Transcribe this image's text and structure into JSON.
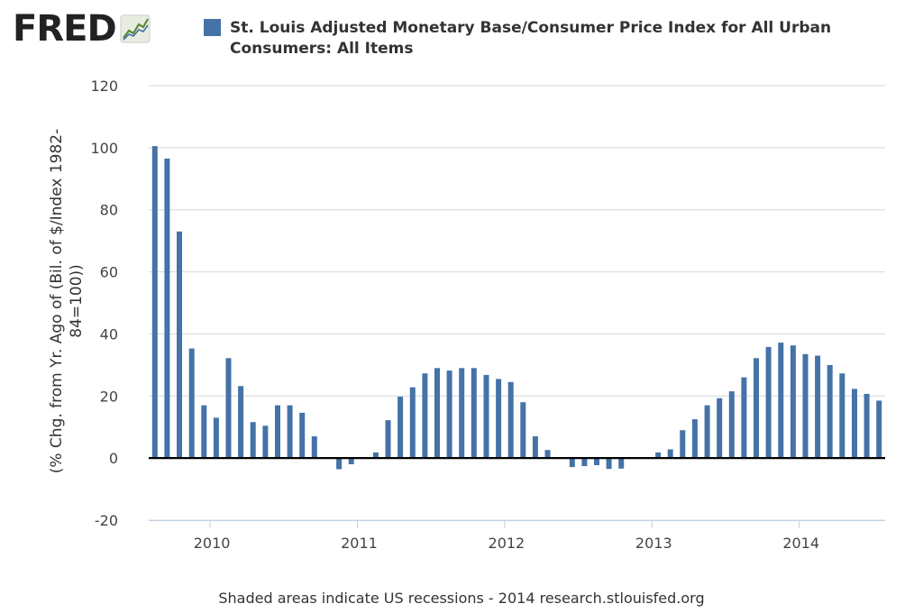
{
  "logo": {
    "text": "FRED",
    "icon": "line-chart-icon"
  },
  "legend": {
    "label": "St. Louis Adjusted Monetary Base/Consumer Price Index for All Urban Consumers: All Items",
    "color": "#4572a7"
  },
  "footer": "Shaded areas indicate US recessions - 2014 research.stlouisfed.org",
  "chart_data": {
    "type": "bar",
    "title": "St. Louis Adjusted Monetary Base/Consumer Price Index for All Urban Consumers: All Items",
    "ylabel_lines": [
      "(% Chg. from Yr. Ago of (Bil. of $/Index 1982-",
      "84=100))"
    ],
    "xlabel": "",
    "ylim": [
      -20,
      120
    ],
    "yticks": [
      120,
      100,
      80,
      60,
      40,
      20,
      0,
      -20
    ],
    "xticks": [
      "2010",
      "2011",
      "2012",
      "2013",
      "2014"
    ],
    "x_range": [
      "2009-08",
      "2014-08"
    ],
    "grid": true,
    "bar_color": "#4572a7",
    "series": [
      {
        "name": "St. Louis Adjusted Monetary Base/Consumer Price Index for All Urban Consumers: All Items",
        "x": [
          "2009-08",
          "2009-09",
          "2009-10",
          "2009-11",
          "2009-12",
          "2010-01",
          "2010-02",
          "2010-03",
          "2010-04",
          "2010-05",
          "2010-06",
          "2010-07",
          "2010-08",
          "2010-09",
          "2010-10",
          "2010-11",
          "2010-12",
          "2011-01",
          "2011-02",
          "2011-03",
          "2011-04",
          "2011-05",
          "2011-06",
          "2011-07",
          "2011-08",
          "2011-09",
          "2011-10",
          "2011-11",
          "2011-12",
          "2012-01",
          "2012-02",
          "2012-03",
          "2012-04",
          "2012-05",
          "2012-06",
          "2012-07",
          "2012-08",
          "2012-09",
          "2012-10",
          "2012-11",
          "2012-12",
          "2013-01",
          "2013-02",
          "2013-03",
          "2013-04",
          "2013-05",
          "2013-06",
          "2013-07",
          "2013-08",
          "2013-09",
          "2013-10",
          "2013-11",
          "2013-12",
          "2014-01",
          "2014-02",
          "2014-03",
          "2014-04",
          "2014-05",
          "2014-06",
          "2014-07"
        ],
        "values": [
          100.5,
          96.5,
          73,
          35.3,
          17,
          13,
          32.2,
          23.2,
          11.6,
          10.4,
          17,
          17,
          14.6,
          7,
          0,
          -3.6,
          -2,
          0,
          1.8,
          12.2,
          19.8,
          22.8,
          27.3,
          29,
          28.2,
          29,
          29,
          26.8,
          25.5,
          24.5,
          18,
          7,
          2.6,
          0,
          -2.9,
          -2.6,
          -2.3,
          -3.5,
          -3.4,
          0,
          0,
          1.8,
          2.8,
          9,
          12.5,
          17,
          19.3,
          21.5,
          26,
          32.2,
          35.8,
          37.2,
          36.3,
          33.5,
          33,
          30,
          27.3,
          22.3,
          20.7,
          18.5
        ]
      }
    ]
  }
}
